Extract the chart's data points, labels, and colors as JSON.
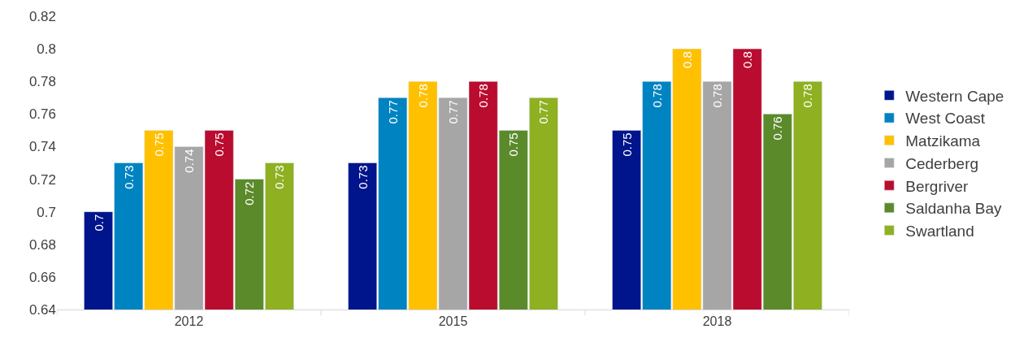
{
  "chart_data": {
    "type": "bar",
    "categories": [
      "2012",
      "2015",
      "2018"
    ],
    "series": [
      {
        "name": "Western Cape",
        "color": "#00148c",
        "values": [
          0.7,
          0.73,
          0.75
        ]
      },
      {
        "name": "West Coast",
        "color": "#0083c1",
        "values": [
          0.73,
          0.77,
          0.78
        ]
      },
      {
        "name": "Matzikama",
        "color": "#ffc000",
        "values": [
          0.75,
          0.78,
          0.8
        ]
      },
      {
        "name": "Cederberg",
        "color": "#a6a6a6",
        "values": [
          0.74,
          0.77,
          0.78
        ]
      },
      {
        "name": "Bergriver",
        "color": "#ba0c2f",
        "values": [
          0.75,
          0.78,
          0.8
        ]
      },
      {
        "name": "Saldanha Bay",
        "color": "#5b8a2b",
        "values": [
          0.72,
          0.75,
          0.76
        ]
      },
      {
        "name": "Swartland",
        "color": "#8fb021",
        "values": [
          0.73,
          0.77,
          0.78
        ]
      }
    ],
    "ylim": [
      0.64,
      0.82
    ],
    "yticks": [
      0.64,
      0.66,
      0.68,
      0.7,
      0.72,
      0.74,
      0.76,
      0.78,
      0.8,
      0.82
    ],
    "grid": false,
    "legend": "right",
    "data_labels": true
  }
}
